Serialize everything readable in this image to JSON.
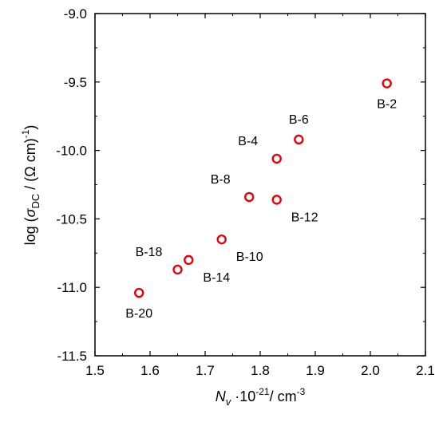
{
  "chart_data": {
    "type": "scatter",
    "xlabel": {
      "var": "N",
      "sub": "v",
      "rest": " ·10",
      "exp": "-21",
      "unit": "/ cm",
      "unit_exp": "-3"
    },
    "ylabel": {
      "prefix": "log (",
      "sigma": "σ",
      "sub": "DC",
      "middle": " / (Ω cm)",
      "exp": "-1",
      "suffix": ")"
    },
    "xlim": [
      1.5,
      2.1
    ],
    "ylim": [
      -11.5,
      -9.0
    ],
    "x_ticks": [
      "1.5",
      "1.6",
      "1.7",
      "1.8",
      "1.9",
      "2.0",
      "2.1"
    ],
    "y_ticks": [
      "-9.0",
      "-9.5",
      "-10.0",
      "-10.5",
      "-11.0",
      "-11.5"
    ],
    "grid": false,
    "marker_color": "#e8000b",
    "points": [
      {
        "label": "B-2",
        "x": 2.03,
        "y": -9.51,
        "label_pos": "below"
      },
      {
        "label": "B-6",
        "x": 1.87,
        "y": -9.92,
        "label_pos": "above"
      },
      {
        "label": "B-4",
        "x": 1.83,
        "y": -10.06,
        "label_pos": "above-left"
      },
      {
        "label": "B-8",
        "x": 1.78,
        "y": -10.34,
        "label_pos": "above-left"
      },
      {
        "label": "B-12",
        "x": 1.83,
        "y": -10.36,
        "label_pos": "below-right"
      },
      {
        "label": "B-10",
        "x": 1.73,
        "y": -10.65,
        "label_pos": "below-right"
      },
      {
        "label": "B-18",
        "x": 1.65,
        "y": -10.87,
        "label_pos": "above-left"
      },
      {
        "label": "B-14",
        "x": 1.67,
        "y": -10.8,
        "label_pos": "below-right"
      },
      {
        "label": "B-20",
        "x": 1.58,
        "y": -11.04,
        "label_pos": "below"
      }
    ]
  }
}
